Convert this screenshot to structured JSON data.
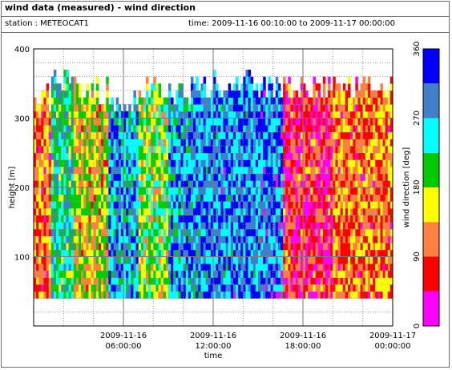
{
  "header": {
    "title": "wind data (measured) - wind direction",
    "station": "station : METEOCAT1",
    "time_range": "time: 2009-11-16 00:10:00 to 2009-11-17 00:00:00"
  },
  "chart_data": {
    "type": "heatmap",
    "xlabel": "time",
    "ylabel": "height [m]",
    "x_ticks": [
      {
        "at_hour": 6,
        "line1": "2009-11-16",
        "line2": "06:00:00"
      },
      {
        "at_hour": 12,
        "line1": "2009-11-16",
        "line2": "12:00:00"
      },
      {
        "at_hour": 18,
        "line1": "2009-11-16",
        "line2": "18:00:00"
      },
      {
        "at_hour": 24,
        "line1": "2009-11-17",
        "line2": "00:00:00"
      }
    ],
    "xlim_hours": [
      0,
      24
    ],
    "ylim": [
      0,
      400
    ],
    "y_ticks": [
      100,
      200,
      300,
      400
    ],
    "grid": true,
    "height_range_m": [
      40,
      365
    ],
    "time_step_min": 10,
    "colorbar": {
      "label": "wind direction [deg]",
      "range": [
        0,
        360
      ],
      "ticks": [
        0,
        90,
        180,
        270,
        360
      ],
      "bins": [
        {
          "from": 0,
          "to": 45,
          "color": "#ff00ff"
        },
        {
          "from": 45,
          "to": 90,
          "color": "#ff0000"
        },
        {
          "from": 90,
          "to": 135,
          "color": "#ff8040"
        },
        {
          "from": 135,
          "to": 180,
          "color": "#ffff00"
        },
        {
          "from": 180,
          "to": 225,
          "color": "#00cc00"
        },
        {
          "from": 225,
          "to": 270,
          "color": "#00ffff"
        },
        {
          "from": 270,
          "to": 315,
          "color": "#4080c8"
        },
        {
          "from": 315,
          "to": 360,
          "color": "#0000ff"
        }
      ]
    },
    "segments": [
      {
        "from_hour": 0.0,
        "to_hour": 1.0,
        "top_m": 345,
        "base_direction_deg": 110
      },
      {
        "from_hour": 1.0,
        "to_hour": 2.5,
        "top_m": 365,
        "base_direction_deg": 240
      },
      {
        "from_hour": 2.5,
        "to_hour": 5.0,
        "top_m": 355,
        "base_direction_deg": 155
      },
      {
        "from_hour": 5.0,
        "to_hour": 7.0,
        "top_m": 340,
        "base_direction_deg": 280
      },
      {
        "from_hour": 7.0,
        "to_hour": 9.0,
        "top_m": 355,
        "base_direction_deg": 185
      },
      {
        "from_hour": 9.0,
        "to_hour": 11.0,
        "top_m": 355,
        "base_direction_deg": 280
      },
      {
        "from_hour": 11.0,
        "to_hour": 15.0,
        "top_m": 365,
        "base_direction_deg": 292
      },
      {
        "from_hour": 15.0,
        "to_hour": 16.5,
        "top_m": 365,
        "base_direction_deg": 300
      },
      {
        "from_hour": 16.5,
        "to_hour": 20.0,
        "top_m": 360,
        "base_direction_deg": 70
      },
      {
        "from_hour": 20.0,
        "to_hour": 24.0,
        "top_m": 360,
        "base_direction_deg": 110
      }
    ]
  }
}
